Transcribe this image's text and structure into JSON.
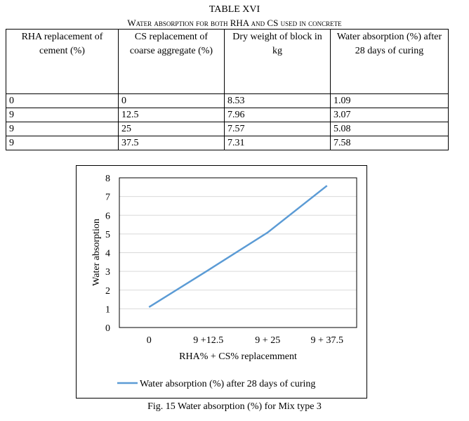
{
  "table": {
    "number": "TABLE XVI",
    "title": "Water absorption for both RHA and CS used in concrete",
    "headers": [
      "RHA replacement of cement (%)",
      "CS replacement of coarse aggregate (%)",
      "Dry weight of block in kg",
      "Water absorption (%) after 28 days of curing"
    ],
    "rows": [
      [
        "0",
        "0",
        "8.53",
        "1.09"
      ],
      [
        "9",
        "12.5",
        "7.96",
        "3.07"
      ],
      [
        "9",
        "25",
        "7.57",
        "5.08"
      ],
      [
        "9",
        "37.5",
        "7.31",
        "7.58"
      ]
    ]
  },
  "chart_data": {
    "type": "line",
    "categories": [
      "0",
      "9 +12.5",
      "9 + 25",
      "9 + 37.5"
    ],
    "series": [
      {
        "name": "Water absorption (%) after 28 days of curing",
        "values": [
          1.09,
          3.07,
          5.08,
          7.58
        ],
        "color": "#5b9bd5"
      }
    ],
    "xlabel": "RHA% + CS% replacemment",
    "ylabel": "Water absorption",
    "ylim": [
      0,
      8
    ],
    "yticks": [
      "0",
      "1",
      "2",
      "3",
      "4",
      "5",
      "6",
      "7",
      "8"
    ],
    "grid": true,
    "legend": "bottom"
  },
  "caption": "Fig. 15 Water absorption (%) for Mix type 3"
}
